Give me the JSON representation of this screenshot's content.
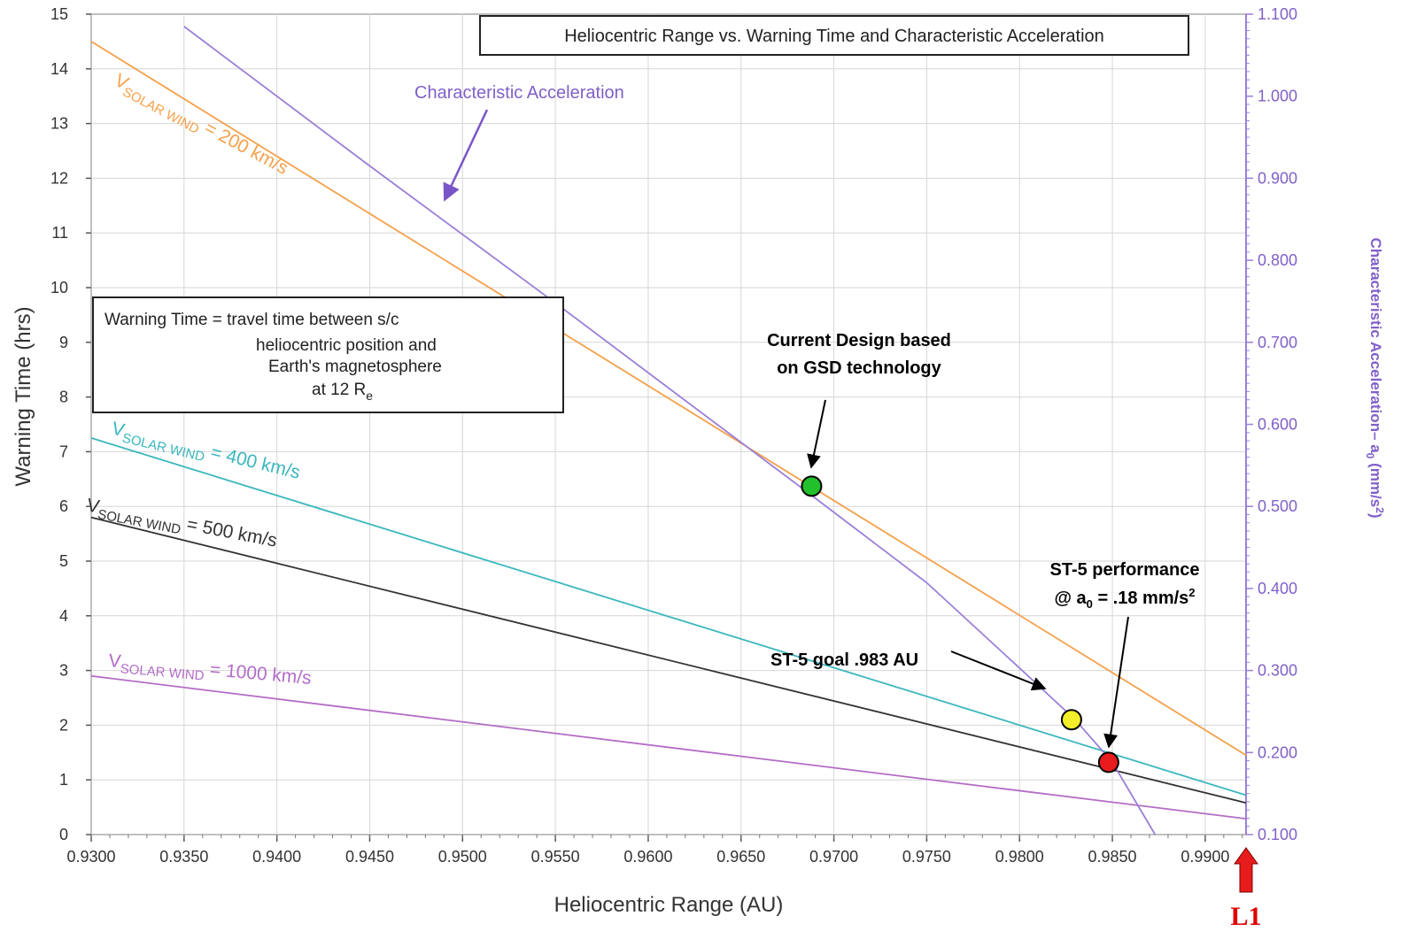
{
  "chart_data": {
    "type": "line",
    "title": "Heliocentric Range vs. Warning Time and Characteristic Acceleration",
    "xlabel": "Heliocentric Range (AU)",
    "ylabel": "Warning Time (hrs)",
    "y2label_main": "Characteristic Acceleration– a",
    "y2label_sub": "0",
    "y2label_tail": " (mm/s",
    "y2label_sup": "2",
    "y2label_end": ")",
    "xlim": [
      0.93,
      0.9922
    ],
    "ylim": [
      0,
      15
    ],
    "y2lim": [
      0.1,
      1.1
    ],
    "x_ticks": [
      0.93,
      0.935,
      0.94,
      0.945,
      0.95,
      0.955,
      0.96,
      0.965,
      0.97,
      0.975,
      0.98,
      0.985,
      0.99
    ],
    "x_tick_labels": [
      "0.9300",
      "0.9350",
      "0.9400",
      "0.9450",
      "0.9500",
      "0.9550",
      "0.9600",
      "0.9650",
      "0.9700",
      "0.9750",
      "0.9800",
      "0.9850",
      "0.9900"
    ],
    "y_ticks": [
      0,
      1,
      2,
      3,
      4,
      5,
      6,
      7,
      8,
      9,
      10,
      11,
      12,
      13,
      14,
      15
    ],
    "y_tick_labels": [
      "0",
      "1",
      "2",
      "3",
      "4",
      "5",
      "6",
      "7",
      "8",
      "9",
      "10",
      "11",
      "12",
      "13",
      "14",
      "15"
    ],
    "y2_ticks": [
      0.1,
      0.2,
      0.3,
      0.4,
      0.5,
      0.6,
      0.7,
      0.8,
      0.9,
      1.0,
      1.1
    ],
    "y2_tick_labels": [
      "0.100",
      "0.200",
      "0.300",
      "0.400",
      "0.500",
      "0.600",
      "0.700",
      "0.800",
      "0.900",
      "1.000",
      "1.100"
    ],
    "grid": true,
    "series": [
      {
        "name": "V",
        "name_sub": "SOLAR WIND",
        "name_tail": " = 200 km/s",
        "color": "#f5a04a",
        "axis": "left",
        "x": [
          0.93,
          0.9922
        ],
        "y": [
          14.5,
          1.45
        ]
      },
      {
        "name": "V",
        "name_sub": "SOLAR WIND",
        "name_tail": " = 400 km/s",
        "color": "#3bb7bd",
        "axis": "left",
        "x": [
          0.93,
          0.9922
        ],
        "y": [
          7.25,
          0.72
        ]
      },
      {
        "name": "V",
        "name_sub": "SOLAR WIND",
        "name_tail": " = 500 km/s",
        "color": "#333333",
        "axis": "left",
        "x": [
          0.93,
          0.9922
        ],
        "y": [
          5.8,
          0.58
        ]
      },
      {
        "name": "V",
        "name_sub": "SOLAR WIND",
        "name_tail": " = 1000 km/s",
        "color": "#b36cc6",
        "axis": "left",
        "x": [
          0.93,
          0.9922
        ],
        "y": [
          2.9,
          0.29
        ]
      },
      {
        "name": "Characteristic Acceleration",
        "color": "#9b7fd8",
        "axis": "right",
        "x": [
          0.935,
          0.945,
          0.955,
          0.96,
          0.965,
          0.969,
          0.975,
          0.98,
          0.983,
          0.985,
          0.9873
        ],
        "y": [
          1.085,
          0.915,
          0.748,
          0.663,
          0.578,
          0.51,
          0.407,
          0.303,
          0.24,
          0.188,
          0.1
        ]
      }
    ],
    "points": [
      {
        "label": "Current Design based on GSD technology",
        "x": 0.9688,
        "y": 6.37,
        "color": "#22c02a"
      },
      {
        "label": "ST-5 goal .983 AU",
        "x": 0.9828,
        "y": 2.1,
        "color": "#f2ee2a"
      },
      {
        "label": "ST-5 performance @ a0 = .18 mm/s2",
        "x": 0.9848,
        "y": 1.32,
        "color": "#e81c1c"
      }
    ]
  },
  "annotations": {
    "accel_label": "Characteristic Acceleration",
    "current_design_line1": "Current Design based",
    "current_design_line2": "on GSD technology",
    "st5_goal": "ST-5 goal .983 AU",
    "st5_perf_line1": "ST-5 performance",
    "st5_perf_line2_a": "@ a",
    "st5_perf_line2_sub": "0",
    "st5_perf_line2_b": " = .18 mm/s",
    "st5_perf_line2_sup": "2",
    "l1": "L1"
  },
  "definition_box": {
    "line1": "Warning Time = travel time between s/c",
    "line2": "heliocentric position and",
    "line3": "Earth's magnetosphere",
    "line4_a": "at 12 R",
    "line4_sub": "e"
  }
}
